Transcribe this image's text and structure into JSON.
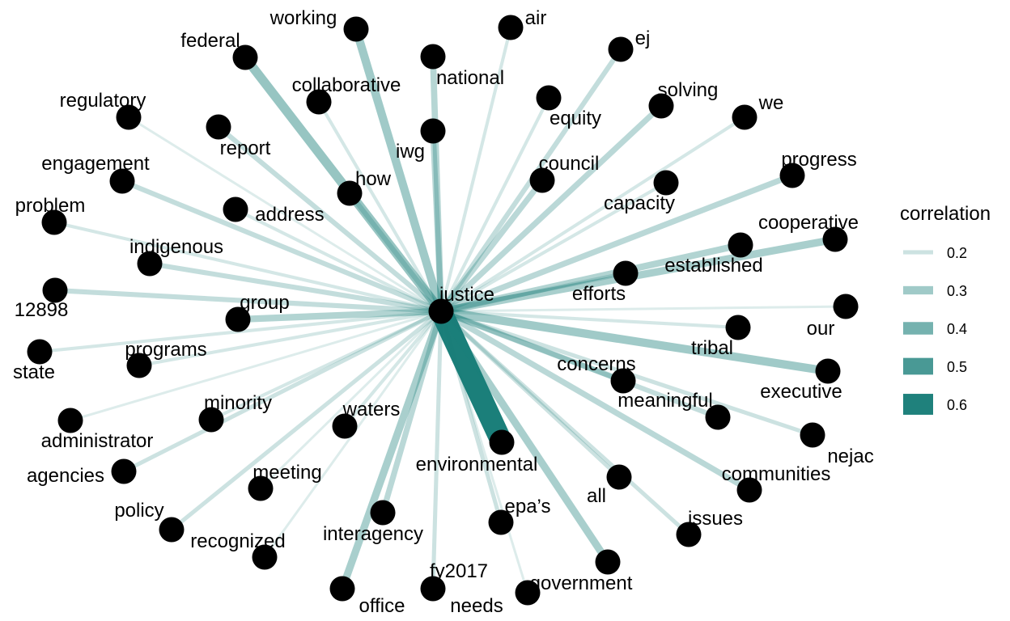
{
  "legend": {
    "title": "correlation",
    "edge_color": "#1b7f7a",
    "items": [
      {
        "label": "0.2",
        "value": 0.2
      },
      {
        "label": "0.3",
        "value": 0.3
      },
      {
        "label": "0.4",
        "value": 0.4
      },
      {
        "label": "0.5",
        "value": 0.5
      },
      {
        "label": "0.6",
        "value": 0.6
      }
    ]
  },
  "center": {
    "label": "justice"
  },
  "nodes": [
    {
      "id": "working",
      "label": "working",
      "correlation": 0.3
    },
    {
      "id": "federal",
      "label": "federal",
      "correlation": 0.32
    },
    {
      "id": "air",
      "label": "air",
      "correlation": 0.18
    },
    {
      "id": "ej",
      "label": "ej",
      "correlation": 0.22
    },
    {
      "id": "national",
      "label": "national",
      "correlation": 0.25
    },
    {
      "id": "collaborative",
      "label": "collaborative",
      "correlation": 0.18
    },
    {
      "id": "regulatory",
      "label": "regulatory",
      "correlation": 0.16
    },
    {
      "id": "equity",
      "label": "equity",
      "correlation": 0.18
    },
    {
      "id": "solving",
      "label": "solving",
      "correlation": 0.24
    },
    {
      "id": "we",
      "label": "we",
      "correlation": 0.18
    },
    {
      "id": "report",
      "label": "report",
      "correlation": 0.22
    },
    {
      "id": "iwg",
      "label": "iwg",
      "correlation": 0.24
    },
    {
      "id": "engagement",
      "label": "engagement",
      "correlation": 0.22
    },
    {
      "id": "how",
      "label": "how",
      "correlation": 0.22
    },
    {
      "id": "council",
      "label": "council",
      "correlation": 0.24
    },
    {
      "id": "progress",
      "label": "progress",
      "correlation": 0.24
    },
    {
      "id": "problem",
      "label": "problem",
      "correlation": 0.18
    },
    {
      "id": "address",
      "label": "address",
      "correlation": 0.18
    },
    {
      "id": "capacity",
      "label": "capacity",
      "correlation": 0.18
    },
    {
      "id": "cooperative",
      "label": "cooperative",
      "correlation": 0.28
    },
    {
      "id": "indigenous",
      "label": "indigenous",
      "correlation": 0.22
    },
    {
      "id": "established",
      "label": "established",
      "correlation": 0.26
    },
    {
      "id": "efforts",
      "label": "efforts",
      "correlation": 0.2
    },
    {
      "id": "12898",
      "label": "12898",
      "correlation": 0.22
    },
    {
      "id": "group",
      "label": "group",
      "correlation": 0.26
    },
    {
      "id": "our",
      "label": "our",
      "correlation": 0.16
    },
    {
      "id": "tribal",
      "label": "tribal",
      "correlation": 0.18
    },
    {
      "id": "state",
      "label": "state",
      "correlation": 0.18
    },
    {
      "id": "programs",
      "label": "programs",
      "correlation": 0.18
    },
    {
      "id": "executive",
      "label": "executive",
      "correlation": 0.3
    },
    {
      "id": "concerns",
      "label": "concerns",
      "correlation": 0.24
    },
    {
      "id": "minority",
      "label": "minority",
      "correlation": 0.18
    },
    {
      "id": "administrator",
      "label": "administrator",
      "correlation": 0.16
    },
    {
      "id": "meaningful",
      "label": "meaningful",
      "correlation": 0.22
    },
    {
      "id": "waters",
      "label": "waters",
      "correlation": 0.18
    },
    {
      "id": "nejac",
      "label": "nejac",
      "correlation": 0.2
    },
    {
      "id": "environmental",
      "label": "environmental",
      "correlation": 0.62
    },
    {
      "id": "agencies",
      "label": "agencies",
      "correlation": 0.2
    },
    {
      "id": "meeting",
      "label": "meeting",
      "correlation": 0.16
    },
    {
      "id": "communities",
      "label": "communities",
      "correlation": 0.24
    },
    {
      "id": "all",
      "label": "all",
      "correlation": 0.2
    },
    {
      "id": "policy",
      "label": "policy",
      "correlation": 0.2
    },
    {
      "id": "epas",
      "label": "epa’s",
      "correlation": 0.2
    },
    {
      "id": "issues",
      "label": "issues",
      "correlation": 0.2
    },
    {
      "id": "interagency",
      "label": "interagency",
      "correlation": 0.24
    },
    {
      "id": "recognized",
      "label": "recognized",
      "correlation": 0.16
    },
    {
      "id": "fy2017",
      "label": "fy2017",
      "correlation": 0.2
    },
    {
      "id": "government",
      "label": "government",
      "correlation": 0.28
    },
    {
      "id": "office",
      "label": "office",
      "correlation": 0.28
    },
    {
      "id": "needs",
      "label": "needs",
      "correlation": 0.16
    }
  ]
}
